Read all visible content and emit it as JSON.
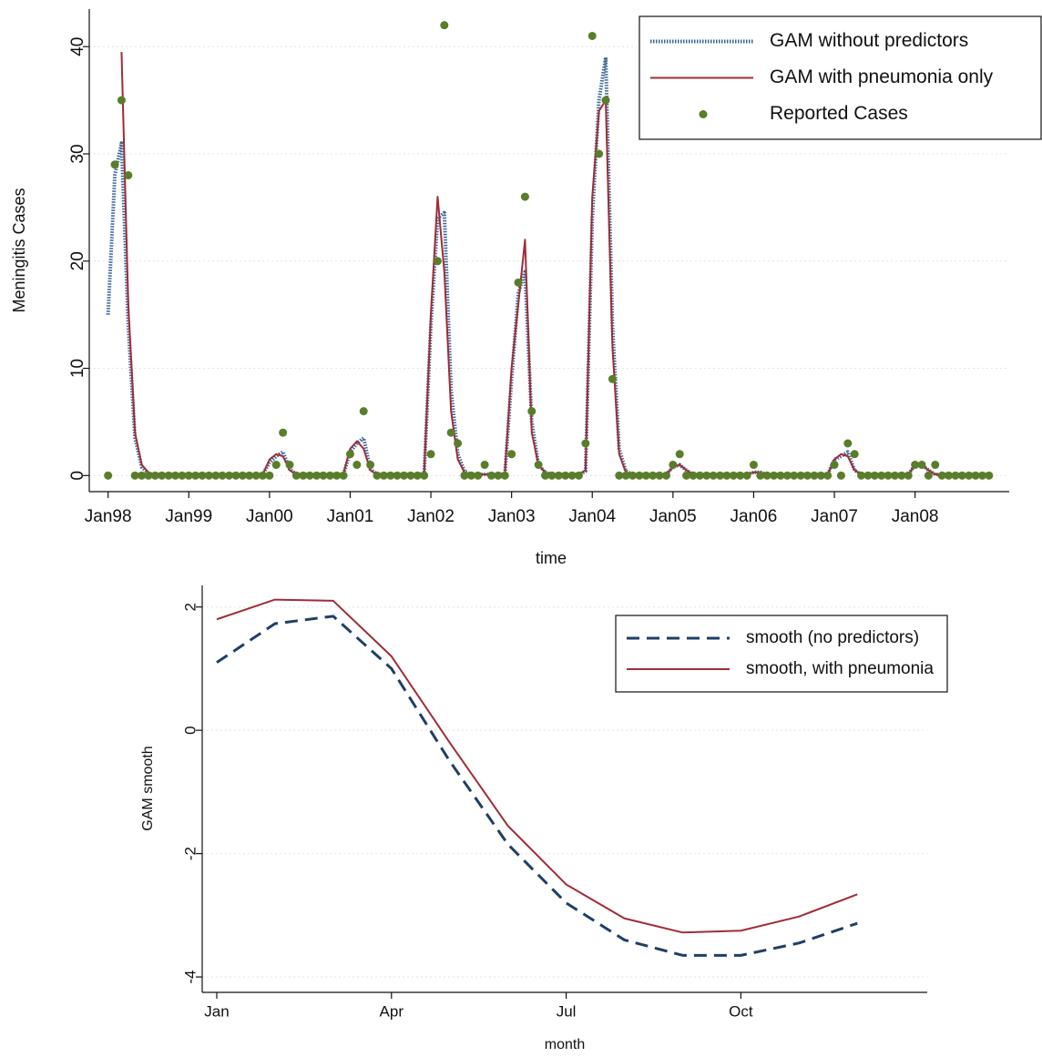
{
  "chart_data": [
    {
      "type": "line",
      "x_label": "time",
      "y_label": "Meningitis Cases",
      "grid": true,
      "legend": "upper right",
      "xlim": [
        -2.8,
        134
      ],
      "ylim": [
        -1.5,
        43.5
      ],
      "yticks": [
        0,
        10,
        20,
        30,
        40
      ],
      "xticks": [
        {
          "value": 0,
          "label": "Jan98"
        },
        {
          "value": 12,
          "label": "Jan99"
        },
        {
          "value": 24,
          "label": "Jan00"
        },
        {
          "value": 36,
          "label": "Jan01"
        },
        {
          "value": 48,
          "label": "Jan02"
        },
        {
          "value": 60,
          "label": "Jan03"
        },
        {
          "value": 72,
          "label": "Jan04"
        },
        {
          "value": 84,
          "label": "Jan05"
        },
        {
          "value": 96,
          "label": "Jan06"
        },
        {
          "value": 108,
          "label": "Jan07"
        },
        {
          "value": 120,
          "label": "Jan08"
        }
      ],
      "x": [
        0,
        1,
        2,
        3,
        4,
        5,
        6,
        7,
        8,
        9,
        10,
        11,
        12,
        13,
        14,
        15,
        16,
        17,
        18,
        19,
        20,
        21,
        22,
        23,
        24,
        25,
        26,
        27,
        28,
        29,
        30,
        31,
        32,
        33,
        34,
        35,
        36,
        37,
        38,
        39,
        40,
        41,
        42,
        43,
        44,
        45,
        46,
        47,
        48,
        49,
        50,
        51,
        52,
        53,
        54,
        55,
        56,
        57,
        58,
        59,
        60,
        61,
        62,
        63,
        64,
        65,
        66,
        67,
        68,
        69,
        70,
        71,
        72,
        73,
        74,
        75,
        76,
        77,
        78,
        79,
        80,
        81,
        82,
        83,
        84,
        85,
        86,
        87,
        88,
        89,
        90,
        91,
        92,
        93,
        94,
        95,
        96,
        97,
        98,
        99,
        100,
        101,
        102,
        103,
        104,
        105,
        106,
        107,
        108,
        109,
        110,
        111,
        112,
        113,
        114,
        115,
        116,
        117,
        118,
        119,
        120,
        121,
        122,
        123,
        124,
        125,
        126,
        127,
        128,
        129,
        130,
        131
      ],
      "series": [
        {
          "name": "GAM without predictors",
          "color": "#3a6694",
          "style": "dotted",
          "mode": "line",
          "values": [
            15,
            28,
            31,
            14,
            3.5,
            0.8,
            0.2,
            0.1,
            0.1,
            0.1,
            0.1,
            0.1,
            0.1,
            0.1,
            0.1,
            0.1,
            0.1,
            0.1,
            0.1,
            0.1,
            0.1,
            0.1,
            0.1,
            0.1,
            1.2,
            1.8,
            2.2,
            0.6,
            0.1,
            0.1,
            0.1,
            0.1,
            0.1,
            0.1,
            0.1,
            0.1,
            2.2,
            3,
            3.5,
            0.6,
            0.1,
            0.1,
            0.1,
            0.1,
            0.1,
            0.1,
            0.1,
            0.2,
            14,
            24,
            24.5,
            8,
            2,
            0.4,
            0.1,
            0.1,
            0.1,
            0.1,
            0.1,
            0.1,
            9,
            17,
            19,
            5,
            1,
            0.3,
            0.1,
            0.1,
            0.1,
            0.1,
            0.1,
            0.4,
            24,
            35,
            39,
            14,
            2.5,
            0.4,
            0.1,
            0.1,
            0.1,
            0.1,
            0.1,
            0.1,
            0.8,
            1,
            0.5,
            0.1,
            0.1,
            0.1,
            0.1,
            0.1,
            0.1,
            0.1,
            0.1,
            0.1,
            0.3,
            0.3,
            0.1,
            0.1,
            0.1,
            0.1,
            0.1,
            0.1,
            0.1,
            0.1,
            0.1,
            0.1,
            1.5,
            1.8,
            2.2,
            0.5,
            0.1,
            0.1,
            0.1,
            0.1,
            0.1,
            0.1,
            0.1,
            0.1,
            1,
            1,
            0.5,
            0.1,
            0.1,
            0.1,
            0.1,
            0.1,
            0.1,
            0.1,
            0.1,
            0.1
          ]
        },
        {
          "name": "GAM with pneumonia only",
          "color": "#9e2d38",
          "style": "solid",
          "mode": "line",
          "values": [
            null,
            null,
            39.5,
            16,
            4,
            1,
            0.3,
            0.1,
            0.1,
            0.2,
            0.1,
            0.1,
            0.1,
            0.1,
            0.2,
            0.1,
            0.1,
            0.1,
            0.1,
            0.1,
            0.1,
            0.1,
            0.1,
            0.1,
            1.5,
            2,
            1.8,
            0.5,
            0.1,
            0.1,
            0.1,
            0.1,
            0.1,
            0.1,
            0.1,
            0.2,
            2.5,
            3.2,
            2.5,
            0.5,
            0.1,
            0.1,
            0.1,
            0.1,
            0.1,
            0.1,
            0.1,
            0.2,
            15,
            26,
            19,
            6,
            1.5,
            0.3,
            0.1,
            0.1,
            0.1,
            0.1,
            0.1,
            0.2,
            10,
            16,
            22,
            4,
            1,
            0.3,
            0.1,
            0.1,
            0.1,
            0.1,
            0.1,
            0.5,
            26,
            34,
            35,
            12,
            2,
            0.3,
            0.1,
            0.1,
            0.1,
            0.1,
            0.1,
            0.1,
            0.8,
            1,
            0.5,
            0.1,
            0.1,
            0.1,
            0.1,
            0.1,
            0.1,
            0.1,
            0.1,
            0.1,
            0.3,
            0.3,
            0.1,
            0.1,
            0.1,
            0.1,
            0.1,
            0.1,
            0.1,
            0.1,
            0.1,
            0.1,
            1.5,
            2,
            1.8,
            0.5,
            0.1,
            0.1,
            0.1,
            0.1,
            0.1,
            0.1,
            0.1,
            0.1,
            1,
            1,
            0.5,
            0.1,
            0.1,
            0.1,
            0.1,
            0.1,
            0.1,
            0.1,
            0.1,
            0.1
          ]
        },
        {
          "name": "Reported Cases",
          "color": "#5a7d2a",
          "mode": "marker",
          "values": [
            0,
            29,
            35,
            28,
            0,
            0,
            0,
            0,
            0,
            0,
            0,
            0,
            0,
            0,
            0,
            0,
            0,
            0,
            0,
            0,
            0,
            0,
            0,
            0,
            0,
            1,
            4,
            1,
            0,
            0,
            0,
            0,
            0,
            0,
            0,
            0,
            2,
            1,
            6,
            1,
            0,
            0,
            0,
            0,
            0,
            0,
            0,
            0,
            2,
            20,
            42,
            4,
            3,
            0,
            0,
            0,
            1,
            0,
            0,
            0,
            2,
            18,
            26,
            6,
            1,
            0,
            0,
            0,
            0,
            0,
            0,
            3,
            41,
            30,
            35,
            9,
            0,
            0,
            0,
            0,
            0,
            0,
            0,
            0,
            1,
            2,
            0,
            0,
            0,
            0,
            0,
            0,
            0,
            0,
            0,
            0,
            1,
            0,
            0,
            0,
            0,
            0,
            0,
            0,
            0,
            0,
            0,
            0,
            1,
            0,
            3,
            2,
            0,
            0,
            0,
            0,
            0,
            0,
            0,
            0,
            1,
            1,
            0,
            1,
            0,
            0,
            0,
            0,
            0,
            0,
            0,
            0
          ]
        }
      ]
    },
    {
      "type": "line",
      "x_label": "month",
      "y_label": "GAM smooth",
      "grid": true,
      "legend": "upper right",
      "xlim": [
        0.75,
        13.2
      ],
      "ylim": [
        -4.25,
        2.35
      ],
      "yticks": [
        -4,
        -2,
        0,
        2
      ],
      "xticks": [
        {
          "value": 1,
          "label": "Jan"
        },
        {
          "value": 4,
          "label": "Apr"
        },
        {
          "value": 7,
          "label": "Jul"
        },
        {
          "value": 10,
          "label": "Oct"
        }
      ],
      "x": [
        1,
        2,
        3,
        4,
        5,
        6,
        7,
        8,
        9,
        10,
        11,
        12
      ],
      "series": [
        {
          "name": "smooth (no predictors)",
          "color": "#1f3f66",
          "style": "dashed",
          "mode": "line",
          "values": [
            1.1,
            1.73,
            1.85,
            1.0,
            -0.5,
            -1.85,
            -2.8,
            -3.4,
            -3.65,
            -3.65,
            -3.45,
            -3.13
          ]
        },
        {
          "name": "smooth, with pneumonia",
          "color": "#9e2d38",
          "style": "solid",
          "mode": "line",
          "values": [
            1.8,
            2.12,
            2.1,
            1.2,
            -0.2,
            -1.55,
            -2.5,
            -3.05,
            -3.28,
            -3.25,
            -3.02,
            -2.66
          ]
        }
      ]
    }
  ]
}
